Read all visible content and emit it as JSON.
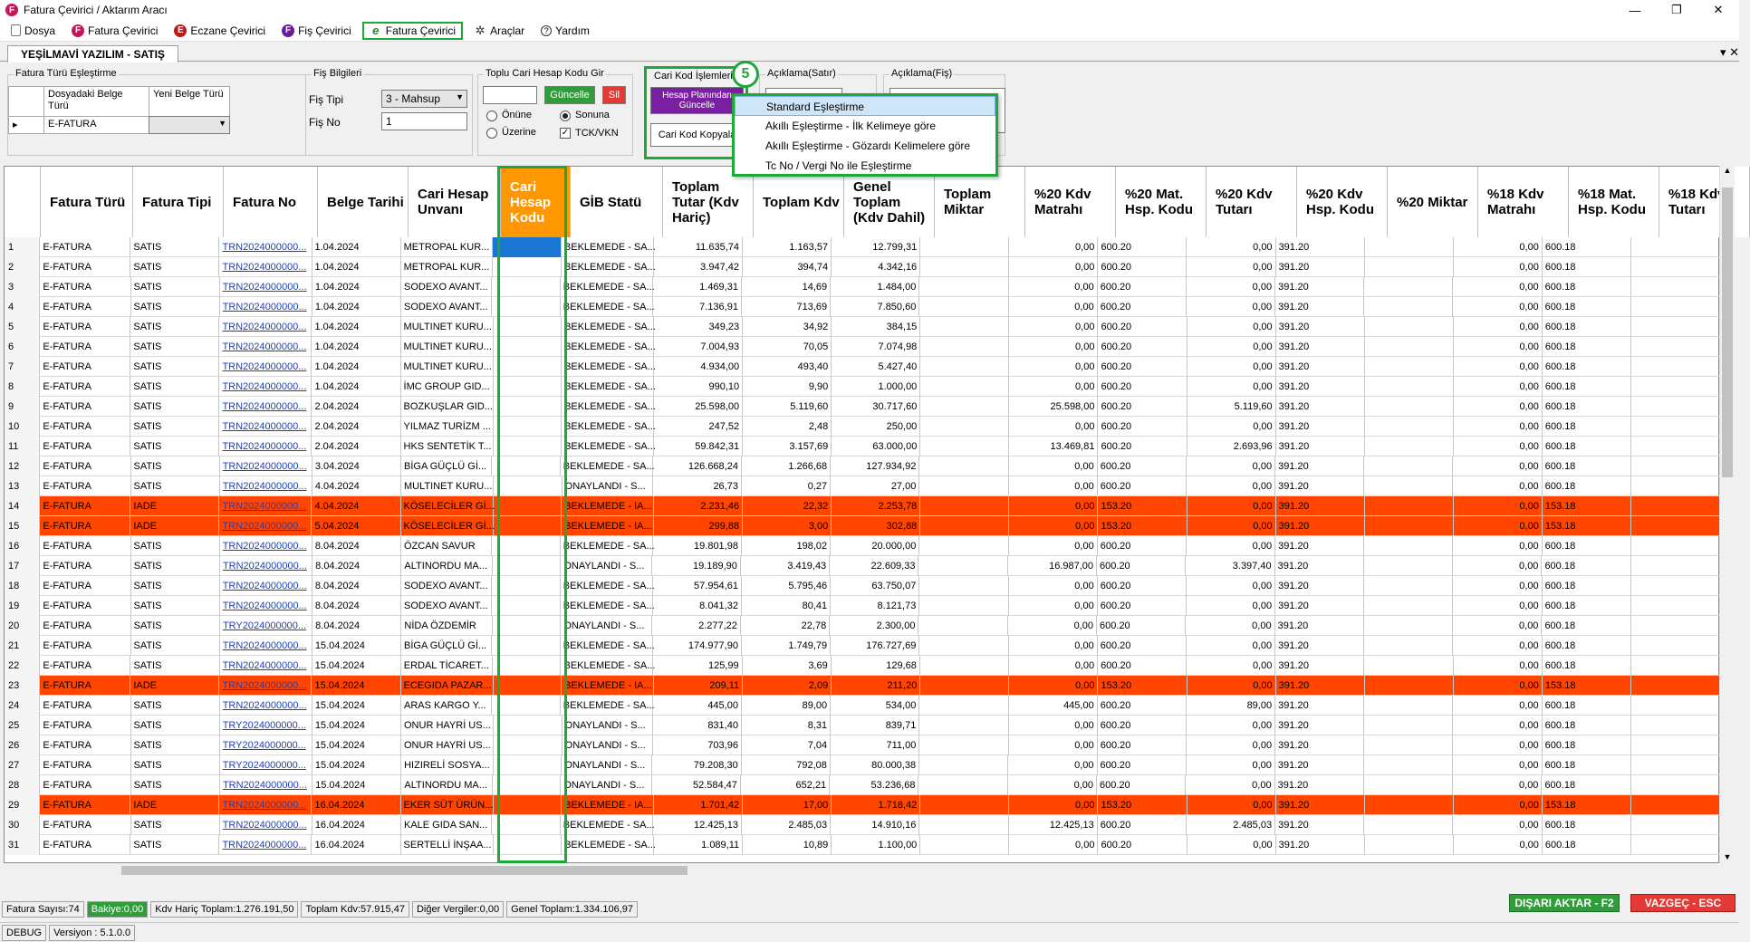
{
  "window": {
    "title": "Fatura Çevirici / Aktarım Aracı",
    "app_icon": "F"
  },
  "menu": [
    {
      "label": "Dosya",
      "icon": "doc-icon"
    },
    {
      "label": "Fatura Çevirici",
      "icon": "f-icon"
    },
    {
      "label": "Eczane Çevirici",
      "icon": "e-icon"
    },
    {
      "label": "Fiş Çevirici",
      "icon": "f-icon"
    },
    {
      "label": "Fatura Çevirici",
      "icon": "e-fatura-icon",
      "active": true
    },
    {
      "label": "Araçlar",
      "icon": "tools-icon"
    },
    {
      "label": "Yardım",
      "icon": "help-icon"
    }
  ],
  "tab": {
    "label": "YEŞİLMAVİ YAZILIM - SATIŞ"
  },
  "fatura_turu": {
    "legend": "Fatura Türü Eşleştirme",
    "col1": "Dosyadaki Belge Türü",
    "col2": "Yeni Belge Türü",
    "value": "E-FATURA",
    "pointer": "▸"
  },
  "fis_bilgileri": {
    "legend": "Fiş Bilgileri",
    "tip_label": "Fiş Tipi",
    "tip_value": "3 - Mahsup",
    "no_label": "Fiş No",
    "no_value": "1"
  },
  "toplu": {
    "legend": "Toplu Cari Hesap Kodu Gir",
    "update": "Güncelle",
    "delete": "Sil",
    "onune": "Önüne",
    "sonuna": "Sonuna",
    "uzerine": "Üzerine",
    "tck": "TCK/VKN"
  },
  "cari_kod": {
    "legend": "Cari Kod İşlemleri",
    "hesap_btn": "Hesap Planından Güncelle",
    "kopyala_btn": "Cari Kod Kopyala"
  },
  "aciklama_satir": {
    "legend": "Açıklama(Satır)"
  },
  "aciklama_fis": {
    "legend": "Açıklama(Fiş)"
  },
  "badge": "5",
  "context_menu": [
    "Standard Eşleştirme",
    "Akıllı Eşleştirme - İlk Kelimeye göre",
    "Akıllı Eşleştirme - Gözardı Kelimelere göre",
    "Tc No / Vergi No ile Eşleştirme"
  ],
  "columns": [
    "",
    "Fatura Türü",
    "Fatura Tipi",
    "Fatura No",
    "Belge Tarihi",
    "Cari Hesap Unvanı",
    "Cari Hesap Kodu",
    "GİB Statü",
    "Toplam Tutar (Kdv Hariç)",
    "Toplam Kdv",
    "Genel Toplam (Kdv Dahil)",
    "Toplam Miktar",
    "%20 Kdv Matrahı",
    "%20 Mat. Hsp. Kodu",
    "%20 Kdv Tutarı",
    "%20 Kdv Hsp. Kodu",
    "%20 Miktar",
    "%18 Kdv Matrahı",
    "%18 Mat. Hsp. Kodu",
    "%18 Kdv Tutarı"
  ],
  "rows": [
    {
      "n": "1",
      "tur": "E-FATURA",
      "tip": "SATIS",
      "no": "TRN2024000000...",
      "tarih": "1.04.2024",
      "unvan": "METROPAL KUR...",
      "gib": "BEKLEMEDE - SA...",
      "tutar": "11.635,74",
      "kdv": "1.163,57",
      "genel": "12.799,31",
      "m20": "0,00",
      "mk20": "600.20",
      "t20": "0,00",
      "tk20": "391.20",
      "m18": "0,00",
      "mk18": "600.18",
      "iade": false
    },
    {
      "n": "2",
      "tur": "E-FATURA",
      "tip": "SATIS",
      "no": "TRN2024000000...",
      "tarih": "1.04.2024",
      "unvan": "METROPAL KUR...",
      "gib": "BEKLEMEDE - SA...",
      "tutar": "3.947,42",
      "kdv": "394,74",
      "genel": "4.342,16",
      "m20": "0,00",
      "mk20": "600.20",
      "t20": "0,00",
      "tk20": "391.20",
      "m18": "0,00",
      "mk18": "600.18",
      "iade": false
    },
    {
      "n": "3",
      "tur": "E-FATURA",
      "tip": "SATIS",
      "no": "TRN2024000000...",
      "tarih": "1.04.2024",
      "unvan": "SODEXO AVANT...",
      "gib": "BEKLEMEDE - SA...",
      "tutar": "1.469,31",
      "kdv": "14,69",
      "genel": "1.484,00",
      "m20": "0,00",
      "mk20": "600.20",
      "t20": "0,00",
      "tk20": "391.20",
      "m18": "0,00",
      "mk18": "600.18",
      "iade": false
    },
    {
      "n": "4",
      "tur": "E-FATURA",
      "tip": "SATIS",
      "no": "TRN2024000000...",
      "tarih": "1.04.2024",
      "unvan": "SODEXO AVANT...",
      "gib": "BEKLEMEDE - SA...",
      "tutar": "7.136,91",
      "kdv": "713,69",
      "genel": "7.850,60",
      "m20": "0,00",
      "mk20": "600.20",
      "t20": "0,00",
      "tk20": "391.20",
      "m18": "0,00",
      "mk18": "600.18",
      "iade": false
    },
    {
      "n": "5",
      "tur": "E-FATURA",
      "tip": "SATIS",
      "no": "TRN2024000000...",
      "tarih": "1.04.2024",
      "unvan": "MULTINET KURU...",
      "gib": "BEKLEMEDE - SA...",
      "tutar": "349,23",
      "kdv": "34,92",
      "genel": "384,15",
      "m20": "0,00",
      "mk20": "600.20",
      "t20": "0,00",
      "tk20": "391.20",
      "m18": "0,00",
      "mk18": "600.18",
      "iade": false
    },
    {
      "n": "6",
      "tur": "E-FATURA",
      "tip": "SATIS",
      "no": "TRN2024000000...",
      "tarih": "1.04.2024",
      "unvan": "MULTINET KURU...",
      "gib": "BEKLEMEDE - SA...",
      "tutar": "7.004,93",
      "kdv": "70,05",
      "genel": "7.074,98",
      "m20": "0,00",
      "mk20": "600.20",
      "t20": "0,00",
      "tk20": "391.20",
      "m18": "0,00",
      "mk18": "600.18",
      "iade": false
    },
    {
      "n": "7",
      "tur": "E-FATURA",
      "tip": "SATIS",
      "no": "TRN2024000000...",
      "tarih": "1.04.2024",
      "unvan": "MULTINET KURU...",
      "gib": "BEKLEMEDE - SA...",
      "tutar": "4.934,00",
      "kdv": "493,40",
      "genel": "5.427,40",
      "m20": "0,00",
      "mk20": "600.20",
      "t20": "0,00",
      "tk20": "391.20",
      "m18": "0,00",
      "mk18": "600.18",
      "iade": false
    },
    {
      "n": "8",
      "tur": "E-FATURA",
      "tip": "SATIS",
      "no": "TRN2024000000...",
      "tarih": "1.04.2024",
      "unvan": "İMC GROUP GID...",
      "gib": "BEKLEMEDE - SA...",
      "tutar": "990,10",
      "kdv": "9,90",
      "genel": "1.000,00",
      "m20": "0,00",
      "mk20": "600.20",
      "t20": "0,00",
      "tk20": "391.20",
      "m18": "0,00",
      "mk18": "600.18",
      "iade": false
    },
    {
      "n": "9",
      "tur": "E-FATURA",
      "tip": "SATIS",
      "no": "TRN2024000000...",
      "tarih": "2.04.2024",
      "unvan": "BOZKUŞLAR GID...",
      "gib": "BEKLEMEDE - SA...",
      "tutar": "25.598,00",
      "kdv": "5.119,60",
      "genel": "30.717,60",
      "m20": "25.598,00",
      "mk20": "600.20",
      "t20": "5.119,60",
      "tk20": "391.20",
      "m18": "0,00",
      "mk18": "600.18",
      "iade": false
    },
    {
      "n": "10",
      "tur": "E-FATURA",
      "tip": "SATIS",
      "no": "TRN2024000000...",
      "tarih": "2.04.2024",
      "unvan": "YILMAZ TURİZM ...",
      "gib": "BEKLEMEDE - SA...",
      "tutar": "247,52",
      "kdv": "2,48",
      "genel": "250,00",
      "m20": "0,00",
      "mk20": "600.20",
      "t20": "0,00",
      "tk20": "391.20",
      "m18": "0,00",
      "mk18": "600.18",
      "iade": false
    },
    {
      "n": "11",
      "tur": "E-FATURA",
      "tip": "SATIS",
      "no": "TRN2024000000...",
      "tarih": "2.04.2024",
      "unvan": "HKS SENTETİK T...",
      "gib": "BEKLEMEDE - SA...",
      "tutar": "59.842,31",
      "kdv": "3.157,69",
      "genel": "63.000,00",
      "m20": "13.469,81",
      "mk20": "600.20",
      "t20": "2.693,96",
      "tk20": "391.20",
      "m18": "0,00",
      "mk18": "600.18",
      "iade": false
    },
    {
      "n": "12",
      "tur": "E-FATURA",
      "tip": "SATIS",
      "no": "TRN2024000000...",
      "tarih": "3.04.2024",
      "unvan": "BİGA GÜÇLÜ Gİ...",
      "gib": "BEKLEMEDE - SA...",
      "tutar": "126.668,24",
      "kdv": "1.266,68",
      "genel": "127.934,92",
      "m20": "0,00",
      "mk20": "600.20",
      "t20": "0,00",
      "tk20": "391.20",
      "m18": "0,00",
      "mk18": "600.18",
      "iade": false
    },
    {
      "n": "13",
      "tur": "E-FATURA",
      "tip": "SATIS",
      "no": "TRN2024000000...",
      "tarih": "4.04.2024",
      "unvan": "MULTINET KURU...",
      "gib": "ONAYLANDI - S...",
      "tutar": "26,73",
      "kdv": "0,27",
      "genel": "27,00",
      "m20": "0,00",
      "mk20": "600.20",
      "t20": "0,00",
      "tk20": "391.20",
      "m18": "0,00",
      "mk18": "600.18",
      "iade": false
    },
    {
      "n": "14",
      "tur": "E-FATURA",
      "tip": "IADE",
      "no": "TRN2024000000...",
      "tarih": "4.04.2024",
      "unvan": "KÖSELECİLER Gİ...",
      "gib": "BEKLEMEDE - IA...",
      "tutar": "2.231,46",
      "kdv": "22,32",
      "genel": "2.253,78",
      "m20": "0,00",
      "mk20": "153.20",
      "t20": "0,00",
      "tk20": "391.20",
      "m18": "0,00",
      "mk18": "153.18",
      "iade": true
    },
    {
      "n": "15",
      "tur": "E-FATURA",
      "tip": "IADE",
      "no": "TRN2024000000...",
      "tarih": "5.04.2024",
      "unvan": "KÖSELECİLER Gİ...",
      "gib": "BEKLEMEDE - IA...",
      "tutar": "299,88",
      "kdv": "3,00",
      "genel": "302,88",
      "m20": "0,00",
      "mk20": "153.20",
      "t20": "0,00",
      "tk20": "391.20",
      "m18": "0,00",
      "mk18": "153.18",
      "iade": true
    },
    {
      "n": "16",
      "tur": "E-FATURA",
      "tip": "SATIS",
      "no": "TRN2024000000...",
      "tarih": "8.04.2024",
      "unvan": "ÖZCAN SAVUR",
      "gib": "BEKLEMEDE - SA...",
      "tutar": "19.801,98",
      "kdv": "198,02",
      "genel": "20.000,00",
      "m20": "0,00",
      "mk20": "600.20",
      "t20": "0,00",
      "tk20": "391.20",
      "m18": "0,00",
      "mk18": "600.18",
      "iade": false
    },
    {
      "n": "17",
      "tur": "E-FATURA",
      "tip": "SATIS",
      "no": "TRN2024000000...",
      "tarih": "8.04.2024",
      "unvan": "ALTINORDU MA...",
      "gib": "ONAYLANDI - S...",
      "tutar": "19.189,90",
      "kdv": "3.419,43",
      "genel": "22.609,33",
      "m20": "16.987,00",
      "mk20": "600.20",
      "t20": "3.397,40",
      "tk20": "391.20",
      "m18": "0,00",
      "mk18": "600.18",
      "iade": false
    },
    {
      "n": "18",
      "tur": "E-FATURA",
      "tip": "SATIS",
      "no": "TRN2024000000...",
      "tarih": "8.04.2024",
      "unvan": "SODEXO AVANT...",
      "gib": "BEKLEMEDE - SA...",
      "tutar": "57.954,61",
      "kdv": "5.795,46",
      "genel": "63.750,07",
      "m20": "0,00",
      "mk20": "600.20",
      "t20": "0,00",
      "tk20": "391.20",
      "m18": "0,00",
      "mk18": "600.18",
      "iade": false
    },
    {
      "n": "19",
      "tur": "E-FATURA",
      "tip": "SATIS",
      "no": "TRN2024000000...",
      "tarih": "8.04.2024",
      "unvan": "SODEXO AVANT...",
      "gib": "BEKLEMEDE - SA...",
      "tutar": "8.041,32",
      "kdv": "80,41",
      "genel": "8.121,73",
      "m20": "0,00",
      "mk20": "600.20",
      "t20": "0,00",
      "tk20": "391.20",
      "m18": "0,00",
      "mk18": "600.18",
      "iade": false
    },
    {
      "n": "20",
      "tur": "E-FATURA",
      "tip": "SATIS",
      "no": "TRY2024000000...",
      "tarih": "8.04.2024",
      "unvan": "NİDA ÖZDEMİR",
      "gib": "ONAYLANDI - S...",
      "tutar": "2.277,22",
      "kdv": "22,78",
      "genel": "2.300,00",
      "m20": "0,00",
      "mk20": "600.20",
      "t20": "0,00",
      "tk20": "391.20",
      "m18": "0,00",
      "mk18": "600.18",
      "iade": false
    },
    {
      "n": "21",
      "tur": "E-FATURA",
      "tip": "SATIS",
      "no": "TRN2024000000...",
      "tarih": "15.04.2024",
      "unvan": "BİGA GÜÇLÜ Gİ...",
      "gib": "BEKLEMEDE - SA...",
      "tutar": "174.977,90",
      "kdv": "1.749,79",
      "genel": "176.727,69",
      "m20": "0,00",
      "mk20": "600.20",
      "t20": "0,00",
      "tk20": "391.20",
      "m18": "0,00",
      "mk18": "600.18",
      "iade": false
    },
    {
      "n": "22",
      "tur": "E-FATURA",
      "tip": "SATIS",
      "no": "TRN2024000000...",
      "tarih": "15.04.2024",
      "unvan": "ERDAL TİCARET...",
      "gib": "BEKLEMEDE - SA...",
      "tutar": "125,99",
      "kdv": "3,69",
      "genel": "129,68",
      "m20": "0,00",
      "mk20": "600.20",
      "t20": "0,00",
      "tk20": "391.20",
      "m18": "0,00",
      "mk18": "600.18",
      "iade": false
    },
    {
      "n": "23",
      "tur": "E-FATURA",
      "tip": "IADE",
      "no": "TRN2024000000...",
      "tarih": "15.04.2024",
      "unvan": "ECEGIDA PAZAR...",
      "gib": "BEKLEMEDE - IA...",
      "tutar": "209,11",
      "kdv": "2,09",
      "genel": "211,20",
      "m20": "0,00",
      "mk20": "153.20",
      "t20": "0,00",
      "tk20": "391.20",
      "m18": "0,00",
      "mk18": "153.18",
      "iade": true
    },
    {
      "n": "24",
      "tur": "E-FATURA",
      "tip": "SATIS",
      "no": "TRN2024000000...",
      "tarih": "15.04.2024",
      "unvan": "ARAS KARGO Y...",
      "gib": "BEKLEMEDE - SA...",
      "tutar": "445,00",
      "kdv": "89,00",
      "genel": "534,00",
      "m20": "445,00",
      "mk20": "600.20",
      "t20": "89,00",
      "tk20": "391.20",
      "m18": "0,00",
      "mk18": "600.18",
      "iade": false
    },
    {
      "n": "25",
      "tur": "E-FATURA",
      "tip": "SATIS",
      "no": "TRY2024000000...",
      "tarih": "15.04.2024",
      "unvan": "ONUR HAYRİ US...",
      "gib": "ONAYLANDI - S...",
      "tutar": "831,40",
      "kdv": "8,31",
      "genel": "839,71",
      "m20": "0,00",
      "mk20": "600.20",
      "t20": "0,00",
      "tk20": "391.20",
      "m18": "0,00",
      "mk18": "600.18",
      "iade": false
    },
    {
      "n": "26",
      "tur": "E-FATURA",
      "tip": "SATIS",
      "no": "TRY2024000000...",
      "tarih": "15.04.2024",
      "unvan": "ONUR HAYRİ US...",
      "gib": "ONAYLANDI - S...",
      "tutar": "703,96",
      "kdv": "7,04",
      "genel": "711,00",
      "m20": "0,00",
      "mk20": "600.20",
      "t20": "0,00",
      "tk20": "391.20",
      "m18": "0,00",
      "mk18": "600.18",
      "iade": false
    },
    {
      "n": "27",
      "tur": "E-FATURA",
      "tip": "SATIS",
      "no": "TRY2024000000...",
      "tarih": "15.04.2024",
      "unvan": "HIZIRELİ SOSYA...",
      "gib": "ONAYLANDI - S...",
      "tutar": "79.208,30",
      "kdv": "792,08",
      "genel": "80.000,38",
      "m20": "0,00",
      "mk20": "600.20",
      "t20": "0,00",
      "tk20": "391.20",
      "m18": "0,00",
      "mk18": "600.18",
      "iade": false
    },
    {
      "n": "28",
      "tur": "E-FATURA",
      "tip": "SATIS",
      "no": "TRN2024000000...",
      "tarih": "15.04.2024",
      "unvan": "ALTINORDU MA...",
      "gib": "ONAYLANDI - S...",
      "tutar": "52.584,47",
      "kdv": "652,21",
      "genel": "53.236,68",
      "m20": "0,00",
      "mk20": "600.20",
      "t20": "0,00",
      "tk20": "391.20",
      "m18": "0,00",
      "mk18": "600.18",
      "iade": false
    },
    {
      "n": "29",
      "tur": "E-FATURA",
      "tip": "IADE",
      "no": "TRN2024000000...",
      "tarih": "16.04.2024",
      "unvan": "EKER SÜT ÜRÜN...",
      "gib": "BEKLEMEDE - IA...",
      "tutar": "1.701,42",
      "kdv": "17,00",
      "genel": "1.718,42",
      "m20": "0,00",
      "mk20": "153.20",
      "t20": "0,00",
      "tk20": "391.20",
      "m18": "0,00",
      "mk18": "153.18",
      "iade": true
    },
    {
      "n": "30",
      "tur": "E-FATURA",
      "tip": "SATIS",
      "no": "TRN2024000000...",
      "tarih": "16.04.2024",
      "unvan": "KALE GIDA SAN...",
      "gib": "BEKLEMEDE - SA...",
      "tutar": "12.425,13",
      "kdv": "2.485,03",
      "genel": "14.910,16",
      "m20": "12.425,13",
      "mk20": "600.20",
      "t20": "2.485,03",
      "tk20": "391.20",
      "m18": "0,00",
      "mk18": "600.18",
      "iade": false
    },
    {
      "n": "31",
      "tur": "E-FATURA",
      "tip": "SATIS",
      "no": "TRN2024000000...",
      "tarih": "16.04.2024",
      "unvan": "SERTELLİ İNŞAA...",
      "gib": "BEKLEMEDE - SA...",
      "tutar": "1.089,11",
      "kdv": "10,89",
      "genel": "1.100,00",
      "m20": "0,00",
      "mk20": "600.20",
      "t20": "0,00",
      "tk20": "391.20",
      "m18": "0,00",
      "mk18": "600.18",
      "iade": false
    }
  ],
  "status": {
    "fatura_sayisi": "Fatura Sayısı:74",
    "bakiye": "Bakiye:0,00",
    "kdv_haric": "Kdv Hariç Toplam:1.276.191,50",
    "toplam_kdv": "Toplam Kdv:57.915,47",
    "diger": "Diğer Vergiler:0,00",
    "genel": "Genel Toplam:1.334.106,97"
  },
  "actions": {
    "export": "DIŞARI AKTAR - F2",
    "cancel": "VAZGEÇ - ESC"
  },
  "bottom": {
    "mode": "DEBUG",
    "version": "Versiyon : 5.1.0.0"
  },
  "colors": {
    "iade_row": "#ff4500",
    "highlight_col": "#ff9800",
    "annotation": "#1fa83a"
  }
}
